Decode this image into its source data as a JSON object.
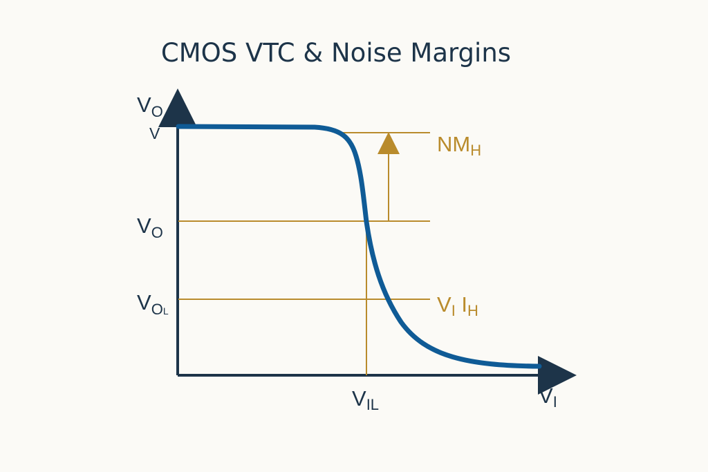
{
  "title": "CMOS VTC & Noise Margins",
  "labels": {
    "y_axis": {
      "main": "V",
      "sub": "O"
    },
    "y_top": "V",
    "y_mid": {
      "main": "V",
      "sub": "O"
    },
    "y_low": {
      "main": "V",
      "sub": "O",
      "tail": "L"
    },
    "x_il": {
      "main": "V",
      "sub": "IL"
    },
    "x_axis": {
      "main": "V",
      "sub": "I"
    },
    "nm_h": {
      "main": "NM",
      "sub": "H"
    },
    "vih": {
      "main": "V",
      "sub1": "I",
      "mid": " I",
      "sub2": "H"
    }
  },
  "colors": {
    "axis": "#1d3449",
    "curve": "#0f5b96",
    "guide": "#b98b2c",
    "background": "#fbfaf6"
  }
}
